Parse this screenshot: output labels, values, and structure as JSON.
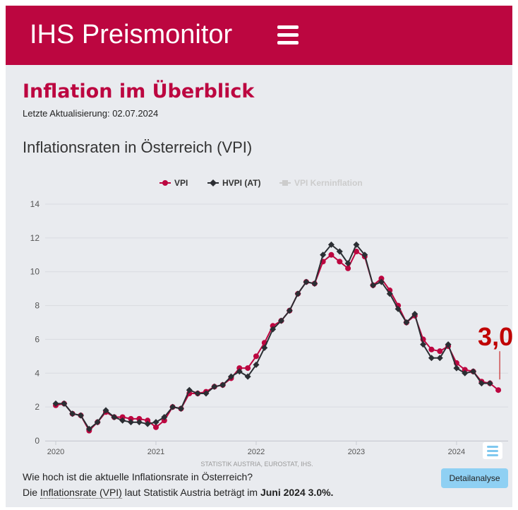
{
  "header": {
    "title": "IHS Preismonitor",
    "menu_icon": "hamburger-menu-icon",
    "color": "#bc0640"
  },
  "page": {
    "title": "Inflation im Überblick",
    "updated": "Letzte Aktualisierung: 02.07.2024",
    "section_title": "Inflationsraten in Österreich (VPI)"
  },
  "chart_data": {
    "type": "line",
    "title": "Inflationsraten in Österreich (VPI)",
    "credits": "STATISTIK AUSTRIA, EUROSTAT, IHS.",
    "ylim": [
      0,
      14
    ],
    "yticks": [
      0,
      2,
      4,
      6,
      8,
      10,
      12,
      14
    ],
    "xticks": [
      {
        "label": "2020",
        "index": 0
      },
      {
        "label": "2021",
        "index": 12
      },
      {
        "label": "2022",
        "index": 24
      },
      {
        "label": "2023",
        "index": 36
      },
      {
        "label": "2024",
        "index": 48
      }
    ],
    "x_start": "2020-01",
    "x_count": 54,
    "legend": [
      {
        "name": "VPI",
        "color": "#bc0640",
        "marker": "circle",
        "active": true
      },
      {
        "name": "HVPI (AT)",
        "color": "#2b2e33",
        "marker": "diamond",
        "active": true
      },
      {
        "name": "VPI Kerninflation",
        "color": "#cccccc",
        "marker": "square",
        "active": false
      }
    ],
    "series": [
      {
        "name": "VPI",
        "color": "#bc0640",
        "values": [
          2.1,
          2.2,
          1.6,
          1.5,
          0.6,
          1.1,
          1.7,
          1.4,
          1.4,
          1.3,
          1.3,
          1.2,
          0.8,
          1.2,
          2.0,
          1.9,
          2.8,
          2.8,
          2.9,
          3.2,
          3.3,
          3.7,
          4.3,
          4.3,
          5.0,
          5.8,
          6.8,
          7.1,
          7.7,
          8.7,
          9.4,
          9.3,
          10.6,
          11.0,
          10.6,
          10.2,
          11.2,
          10.9,
          9.2,
          9.6,
          8.9,
          8.0,
          7.0,
          7.4,
          6.0,
          5.4,
          5.3,
          5.6,
          4.6,
          4.2,
          4.1,
          3.5,
          3.4,
          3.0
        ]
      },
      {
        "name": "HVPI (AT)",
        "color": "#2b2e33",
        "values": [
          2.2,
          2.2,
          1.6,
          1.5,
          0.7,
          1.1,
          1.8,
          1.4,
          1.2,
          1.1,
          1.1,
          1.0,
          1.1,
          1.4,
          2.0,
          1.9,
          3.0,
          2.8,
          2.8,
          3.2,
          3.3,
          3.8,
          4.1,
          3.8,
          4.5,
          5.5,
          6.6,
          7.1,
          7.7,
          8.7,
          9.4,
          9.3,
          11.0,
          11.6,
          11.2,
          10.5,
          11.6,
          11.0,
          9.2,
          9.4,
          8.7,
          7.8,
          7.0,
          7.5,
          5.7,
          4.9,
          4.9,
          5.7,
          4.3,
          4.0,
          4.1,
          3.4,
          3.4,
          null
        ]
      }
    ],
    "annotation": {
      "text": "3,0",
      "color": "#c00000"
    }
  },
  "footer": {
    "question": "Wie hoch ist die aktuelle Inflationsrate in Österreich?",
    "answer_prefix": "Die ",
    "answer_link": "Inflationsrate (VPI)",
    "answer_middle": " laut Statistik Austria beträgt im ",
    "answer_bold": "Juni 2024 3.0%.",
    "button": "Detailanalyse",
    "button_color": "#8fd0f3"
  }
}
